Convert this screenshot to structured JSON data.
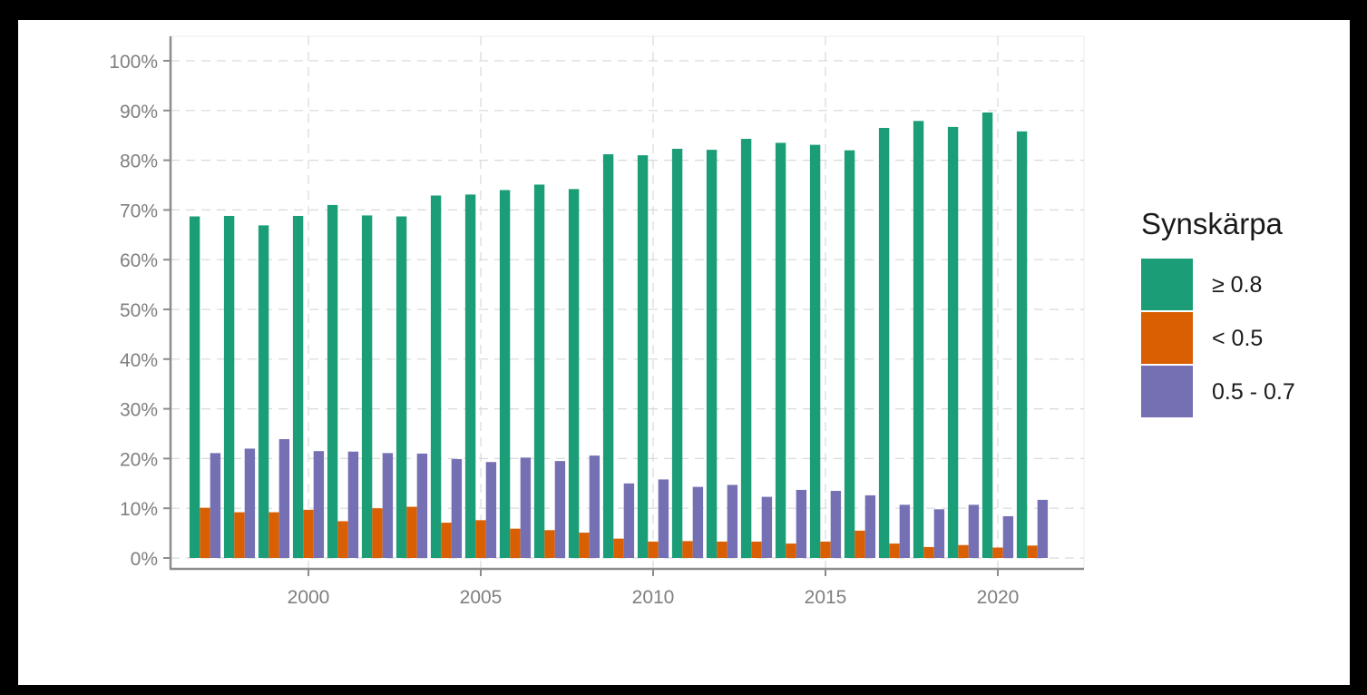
{
  "chart_data": {
    "type": "bar",
    "x": [
      1997,
      1998,
      1999,
      2000,
      2001,
      2002,
      2003,
      2004,
      2005,
      2006,
      2007,
      2008,
      2009,
      2010,
      2011,
      2012,
      2013,
      2014,
      2015,
      2016,
      2017,
      2018,
      2019,
      2020,
      2021
    ],
    "series": [
      {
        "name": "≥ 0.8",
        "color": "#1B9E77",
        "values": [
          68.7,
          68.8,
          66.9,
          68.8,
          71.0,
          68.9,
          68.7,
          72.9,
          73.1,
          74.0,
          75.1,
          74.2,
          81.2,
          81.0,
          82.3,
          82.1,
          84.3,
          83.5,
          83.1,
          82.0,
          86.5,
          87.9,
          86.7,
          89.6,
          85.8
        ]
      },
      {
        "name": "< 0.5",
        "color": "#D95F02",
        "values": [
          10.1,
          9.2,
          9.2,
          9.7,
          7.4,
          10.0,
          10.3,
          7.1,
          7.6,
          5.9,
          5.6,
          5.1,
          3.9,
          3.3,
          3.4,
          3.3,
          3.3,
          2.9,
          3.3,
          5.5,
          2.9,
          2.2,
          2.6,
          2.1,
          2.5
        ]
      },
      {
        "name": "0.5 - 0.7",
        "color": "#7570B3",
        "values": [
          21.1,
          22.0,
          23.9,
          21.5,
          21.4,
          21.1,
          21.0,
          19.9,
          19.3,
          20.2,
          19.5,
          20.6,
          15.0,
          15.8,
          14.3,
          14.7,
          12.3,
          13.7,
          13.5,
          12.6,
          10.7,
          9.8,
          10.7,
          8.4,
          11.7
        ]
      }
    ],
    "y_ticks": [
      "0%",
      "10%",
      "20%",
      "30%",
      "40%",
      "50%",
      "60%",
      "70%",
      "80%",
      "90%",
      "100%"
    ],
    "x_ticks": [
      "2000",
      "2005",
      "2010",
      "2015",
      "2020"
    ],
    "x_tick_values": [
      2000,
      2005,
      2010,
      2015,
      2020
    ],
    "ylim": [
      0,
      100
    ],
    "xlim": [
      1996,
      2022.5
    ],
    "grid": true,
    "legend": {
      "title": "Synskärpa",
      "position": "right"
    }
  }
}
